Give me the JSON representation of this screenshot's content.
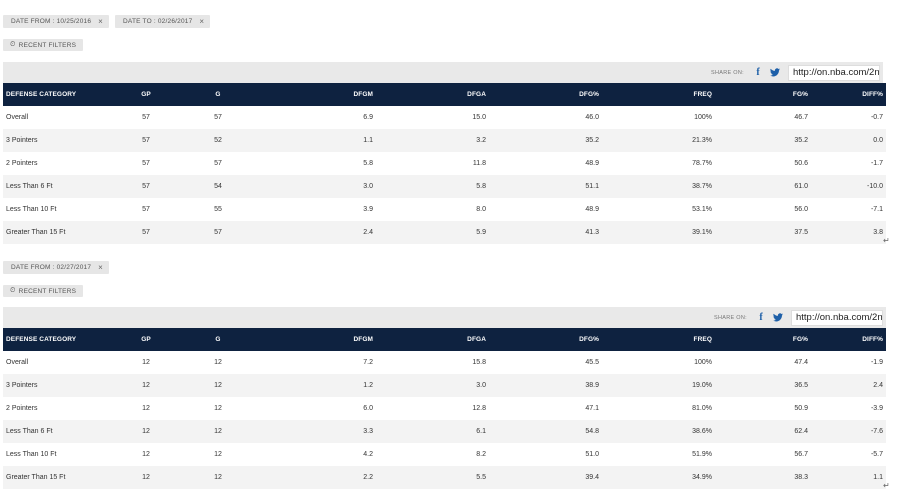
{
  "colors": {
    "header_bg": "#0e2240",
    "share_bar_bg": "#e9e9e9",
    "chip_bg": "#e6e6e6",
    "icon_blue": "#1d5fa8"
  },
  "filters_top": {
    "date_from": "DATE FROM : 10/25/2016",
    "date_to": "DATE TO : 02/26/2017",
    "close": "×"
  },
  "filters_bottom": {
    "date_from": "DATE FROM : 02/27/2017",
    "close": "×"
  },
  "recent_filters_label": "RECENT FILTERS",
  "share": {
    "label": "SHARE ON:",
    "facebook": "f",
    "facebook_icon": "facebook-icon",
    "twitter_icon": "twitter-icon",
    "url": "http://on.nba.com/2n"
  },
  "columns": [
    "DEFENSE CATEGORY",
    "GP",
    "G",
    "DFGM",
    "DFGA",
    "DFG%",
    "FREQ",
    "FG%",
    "DIFF%"
  ],
  "table1": [
    [
      "Overall",
      "57",
      "57",
      "6.9",
      "15.0",
      "46.0",
      "100%",
      "46.7",
      "-0.7"
    ],
    [
      "3 Pointers",
      "57",
      "52",
      "1.1",
      "3.2",
      "35.2",
      "21.3%",
      "35.2",
      "0.0"
    ],
    [
      "2 Pointers",
      "57",
      "57",
      "5.8",
      "11.8",
      "48.9",
      "78.7%",
      "50.6",
      "-1.7"
    ],
    [
      "Less Than 6 Ft",
      "57",
      "54",
      "3.0",
      "5.8",
      "51.1",
      "38.7%",
      "61.0",
      "-10.0"
    ],
    [
      "Less Than 10 Ft",
      "57",
      "55",
      "3.9",
      "8.0",
      "48.9",
      "53.1%",
      "56.0",
      "-7.1"
    ],
    [
      "Greater Than 15 Ft",
      "57",
      "57",
      "2.4",
      "5.9",
      "41.3",
      "39.1%",
      "37.5",
      "3.8"
    ]
  ],
  "table2": [
    [
      "Overall",
      "12",
      "12",
      "7.2",
      "15.8",
      "45.5",
      "100%",
      "47.4",
      "-1.9"
    ],
    [
      "3 Pointers",
      "12",
      "12",
      "1.2",
      "3.0",
      "38.9",
      "19.0%",
      "36.5",
      "2.4"
    ],
    [
      "2 Pointers",
      "12",
      "12",
      "6.0",
      "12.8",
      "47.1",
      "81.0%",
      "50.9",
      "-3.9"
    ],
    [
      "Less Than 6 Ft",
      "12",
      "12",
      "3.3",
      "6.1",
      "54.8",
      "38.6%",
      "62.4",
      "-7.6"
    ],
    [
      "Less Than 10 Ft",
      "12",
      "12",
      "4.2",
      "8.2",
      "51.0",
      "51.9%",
      "56.7",
      "-5.7"
    ],
    [
      "Greater Than 15 Ft",
      "12",
      "12",
      "2.2",
      "5.5",
      "39.4",
      "34.9%",
      "38.3",
      "1.1"
    ]
  ],
  "return_mark": "↵"
}
